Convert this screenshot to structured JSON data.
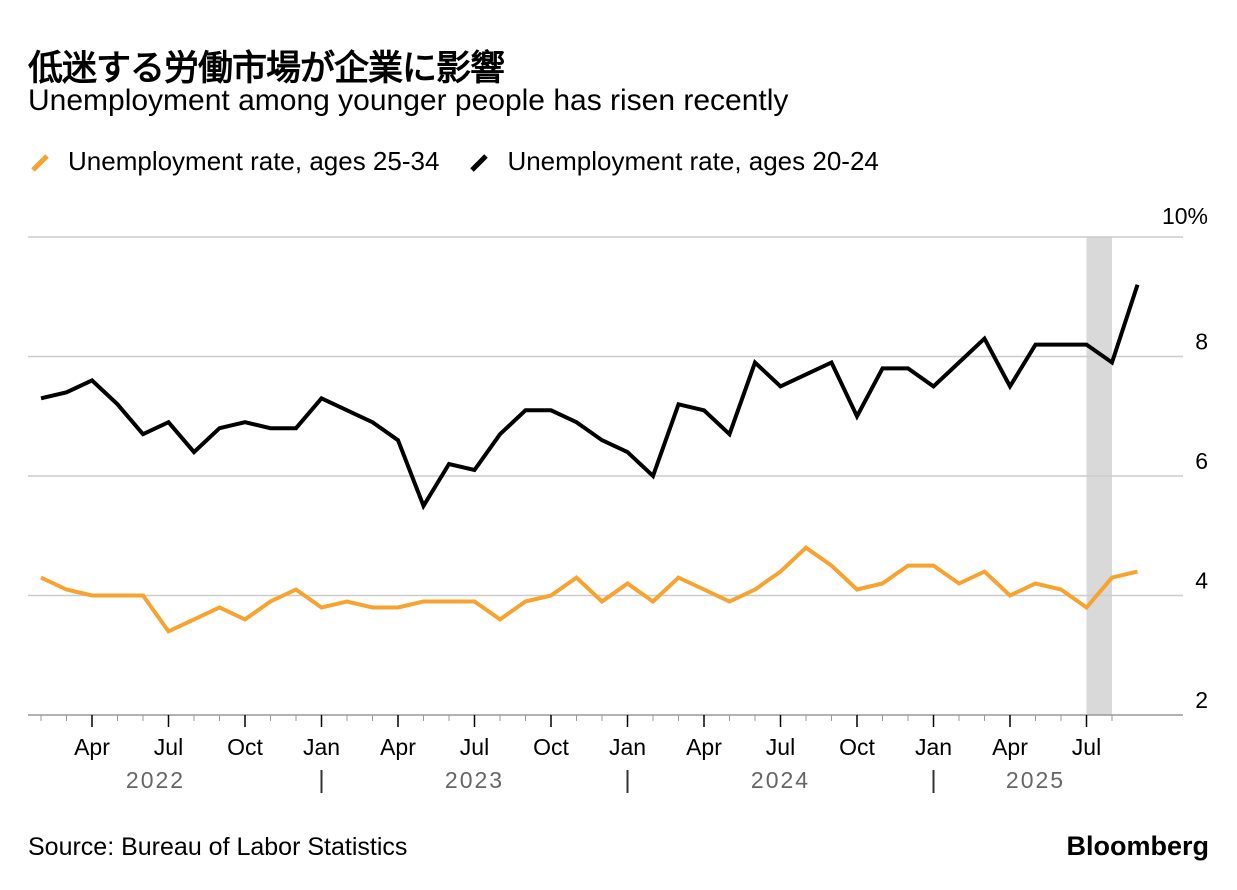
{
  "header": {
    "title": "低迷する労働市場が企業に影響",
    "subtitle": "Unemployment among younger people has risen recently"
  },
  "footer": {
    "source": "Source: Bureau of Labor Statistics",
    "brand": "Bloomberg"
  },
  "colors": {
    "series_25_34": "#F7A330",
    "series_20_24": "#000000",
    "gridline": "#CCCCCC",
    "highlight_band": "#D9D9D9"
  },
  "chart_data": {
    "type": "line",
    "x_start": "2022-02",
    "x_end": "2025-08",
    "y_axis": {
      "range": [
        2,
        10
      ],
      "ticks": [
        2,
        4,
        6,
        8,
        10
      ],
      "tick_labels": [
        "2",
        "4",
        "6",
        "8",
        "10%"
      ],
      "position": "right"
    },
    "x_ticks": [
      {
        "label": "Apr",
        "month": "2022-04"
      },
      {
        "label": "Jul",
        "month": "2022-07"
      },
      {
        "label": "Oct",
        "month": "2022-10"
      },
      {
        "label": "Jan",
        "month": "2023-01"
      },
      {
        "label": "Apr",
        "month": "2023-04"
      },
      {
        "label": "Jul",
        "month": "2023-07"
      },
      {
        "label": "Oct",
        "month": "2023-10"
      },
      {
        "label": "Jan",
        "month": "2024-01"
      },
      {
        "label": "Apr",
        "month": "2024-04"
      },
      {
        "label": "Jul",
        "month": "2024-07"
      },
      {
        "label": "Oct",
        "month": "2024-10"
      },
      {
        "label": "Jan",
        "month": "2025-01"
      },
      {
        "label": "Apr",
        "month": "2025-04"
      },
      {
        "label": "Jul",
        "month": "2025-07"
      }
    ],
    "year_labels": [
      "2022",
      "2023",
      "2024",
      "2025"
    ],
    "highlight": {
      "from": "2025-07",
      "to": "2025-08"
    },
    "grid": true,
    "legend_position": "top-left",
    "series": [
      {
        "name": "Unemployment rate, ages 25-34",
        "color": "#F7A330",
        "values": [
          4.3,
          4.1,
          4.0,
          4.0,
          4.0,
          3.4,
          3.6,
          3.8,
          3.6,
          3.9,
          4.1,
          3.8,
          3.9,
          3.8,
          3.8,
          3.9,
          3.9,
          3.9,
          3.6,
          3.9,
          4.0,
          4.3,
          3.9,
          4.2,
          3.9,
          4.3,
          4.1,
          3.9,
          4.1,
          4.4,
          4.8,
          4.5,
          4.1,
          4.2,
          4.5,
          4.5,
          4.2,
          4.4,
          4.0,
          4.2,
          4.1,
          3.8,
          4.3,
          4.4
        ]
      },
      {
        "name": "Unemployment rate, ages 20-24",
        "color": "#000000",
        "values": [
          7.3,
          7.4,
          7.6,
          7.2,
          6.7,
          6.9,
          6.4,
          6.8,
          6.9,
          6.8,
          6.8,
          7.3,
          7.1,
          6.9,
          6.6,
          5.5,
          6.2,
          6.1,
          6.7,
          7.1,
          7.1,
          6.9,
          6.6,
          6.4,
          6.0,
          7.2,
          7.1,
          6.7,
          7.9,
          7.5,
          7.7,
          7.9,
          7.0,
          7.8,
          7.8,
          7.5,
          7.9,
          8.3,
          7.5,
          8.2,
          8.2,
          8.2,
          7.9,
          9.2
        ]
      }
    ]
  }
}
